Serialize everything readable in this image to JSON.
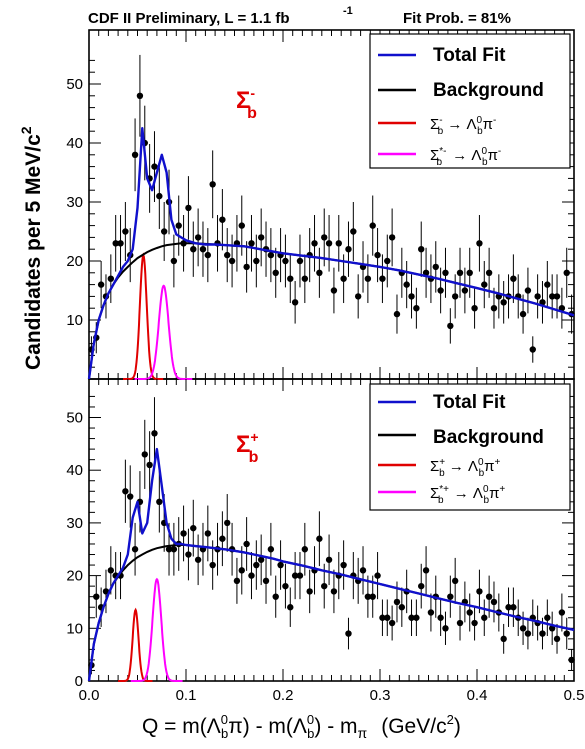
{
  "header": {
    "left": "CDF II Preliminary, L = 1.1 fb",
    "left_sup": "-1",
    "right": "Fit Prob. = 81%"
  },
  "axes": {
    "ylabel": "Candidates per 5 MeV/c",
    "ylabel_sup": "2",
    "xlabel_main": "Q = m(Λ",
    "xlabel_rest": "π) - m(Λ",
    "xlabel_tail": ") - m",
    "xlabel_pi": "π",
    "xlabel_units": "(GeV/c",
    "xlabel_units_sup": "2",
    "xlabel_units_end": ")"
  },
  "colors": {
    "total": "#1010cc",
    "background": "#000000",
    "sigma": "#e00000",
    "sigma_star": "#ff00ff"
  },
  "chart_data": [
    {
      "type": "scatter",
      "panel": "top",
      "signal_label": "Σ",
      "signal_sup": "-",
      "signal_sub": "b",
      "legend": {
        "placement": "top-right",
        "total": "Total Fit",
        "background": "Background",
        "sigma": "Σb- → Λb0π-",
        "sigma_star": "Σb*- → Λb0π-"
      },
      "xlim": [
        0.0,
        0.5
      ],
      "ylim": [
        0,
        57
      ],
      "yticks": [
        10,
        20,
        30,
        40,
        50
      ],
      "points_x": [
        0.0025,
        0.0075,
        0.0125,
        0.0175,
        0.0225,
        0.0275,
        0.0325,
        0.0375,
        0.0425,
        0.0475,
        0.0525,
        0.0575,
        0.0625,
        0.0675,
        0.0725,
        0.0775,
        0.0825,
        0.0875,
        0.0925,
        0.0975,
        0.1025,
        0.1075,
        0.1125,
        0.1175,
        0.1225,
        0.1275,
        0.1325,
        0.1375,
        0.1425,
        0.1475,
        0.1525,
        0.1575,
        0.1625,
        0.1675,
        0.1725,
        0.1775,
        0.1825,
        0.1875,
        0.1925,
        0.1975,
        0.2025,
        0.2075,
        0.2125,
        0.2175,
        0.2225,
        0.2275,
        0.2325,
        0.2375,
        0.2425,
        0.2475,
        0.2525,
        0.2575,
        0.2625,
        0.2675,
        0.2725,
        0.2775,
        0.2825,
        0.2875,
        0.2925,
        0.2975,
        0.3025,
        0.3075,
        0.3125,
        0.3175,
        0.3225,
        0.3275,
        0.3325,
        0.3375,
        0.3425,
        0.3475,
        0.3525,
        0.3575,
        0.3625,
        0.3675,
        0.3725,
        0.3775,
        0.3825,
        0.3875,
        0.3925,
        0.3975,
        0.4025,
        0.4075,
        0.4125,
        0.4175,
        0.4225,
        0.4275,
        0.4325,
        0.4375,
        0.4425,
        0.4475,
        0.4525,
        0.4575,
        0.4625,
        0.4675,
        0.4725,
        0.4775,
        0.4825,
        0.4875,
        0.4925,
        0.4975
      ],
      "points_y": [
        5,
        7,
        16,
        14,
        17,
        23,
        23,
        25,
        21,
        38,
        48,
        40,
        34,
        36,
        31,
        25,
        30,
        20,
        26,
        23,
        29,
        22,
        24,
        22,
        21,
        33,
        23,
        27,
        21,
        20,
        23,
        26,
        19,
        23,
        20,
        24,
        22,
        21,
        18,
        21,
        20,
        17,
        13,
        20,
        17,
        21,
        23,
        18,
        24,
        23,
        15,
        23,
        17,
        22,
        25,
        14,
        19,
        17,
        26,
        21,
        17,
        20,
        24,
        11,
        18,
        16,
        14,
        12,
        22,
        18,
        17,
        19,
        15,
        18,
        9,
        14,
        18,
        15,
        18,
        12,
        23,
        16,
        18,
        12,
        14,
        13,
        14,
        17,
        14,
        11,
        15,
        5,
        14,
        13,
        16,
        14,
        14,
        12,
        18,
        11
      ],
      "curve_x": [
        0.0,
        0.005,
        0.01,
        0.015,
        0.02,
        0.025,
        0.03,
        0.035,
        0.04,
        0.045,
        0.05,
        0.055,
        0.06,
        0.065,
        0.07,
        0.075,
        0.08,
        0.085,
        0.09,
        0.095,
        0.1,
        0.11,
        0.12,
        0.13,
        0.14,
        0.15,
        0.16,
        0.17,
        0.18,
        0.19,
        0.2,
        0.22,
        0.24,
        0.26,
        0.28,
        0.3,
        0.32,
        0.34,
        0.36,
        0.38,
        0.4,
        0.42,
        0.44,
        0.46,
        0.48,
        0.5
      ],
      "total_y": [
        0,
        6,
        10,
        12.5,
        14.5,
        16,
        17.5,
        19,
        20,
        22,
        29,
        42.5,
        34,
        32,
        35,
        38,
        35,
        27,
        24.5,
        24,
        23.5,
        23,
        22.8,
        22.8,
        22.7,
        22.6,
        22.5,
        22.2,
        21.9,
        21.6,
        21.3,
        20.9,
        20.5,
        20.0,
        19.5,
        19.0,
        18.4,
        17.7,
        17.0,
        16.2,
        15.4,
        14.6,
        13.7,
        12.8,
        11.8,
        10.8
      ],
      "bkg_y": [
        0,
        6,
        10,
        12.5,
        14.5,
        16,
        17.2,
        18.2,
        19.0,
        19.8,
        20.5,
        21.0,
        21.5,
        21.9,
        22.2,
        22.5,
        22.7,
        22.8,
        22.9,
        23.0,
        23.0,
        23.0,
        22.9,
        22.8,
        22.7,
        22.6,
        22.5,
        22.2,
        21.9,
        21.6,
        21.3,
        20.9,
        20.5,
        20.0,
        19.5,
        19.0,
        18.4,
        17.7,
        17.0,
        16.2,
        15.4,
        14.6,
        13.7,
        12.8,
        11.8,
        10.8
      ],
      "peak_sigma": {
        "mean": 0.056,
        "height": 21,
        "width": 0.0035
      },
      "peak_sigma_star": {
        "mean": 0.077,
        "height": 15.8,
        "width": 0.005
      }
    },
    {
      "type": "scatter",
      "panel": "bottom",
      "signal_label": "Σ",
      "signal_sup": "+",
      "signal_sub": "b",
      "legend": {
        "placement": "top-right",
        "total": "Total Fit",
        "background": "Background",
        "sigma": "Σb+ → Λb0π+",
        "sigma_star": "Σb*+ → Λb0π+"
      },
      "xlim": [
        0.0,
        0.5
      ],
      "ylim": [
        0,
        57
      ],
      "yticks": [
        0,
        10,
        20,
        30,
        40,
        50
      ],
      "xticks": [
        0.0,
        0.1,
        0.2,
        0.3,
        0.4,
        0.5
      ],
      "xtick_labels": [
        "0.0",
        "0.1",
        "0.2",
        "0.3",
        "0.4",
        "0.5"
      ],
      "points_x": [
        0.0025,
        0.0075,
        0.0125,
        0.0175,
        0.0225,
        0.0275,
        0.0325,
        0.0375,
        0.0425,
        0.0475,
        0.0525,
        0.0575,
        0.0625,
        0.0675,
        0.0725,
        0.0775,
        0.0825,
        0.0875,
        0.0925,
        0.0975,
        0.1025,
        0.1075,
        0.1125,
        0.1175,
        0.1225,
        0.1275,
        0.1325,
        0.1375,
        0.1425,
        0.1475,
        0.1525,
        0.1575,
        0.1625,
        0.1675,
        0.1725,
        0.1775,
        0.1825,
        0.1875,
        0.1925,
        0.1975,
        0.2025,
        0.2075,
        0.2125,
        0.2175,
        0.2225,
        0.2275,
        0.2325,
        0.2375,
        0.2425,
        0.2475,
        0.2525,
        0.2575,
        0.2625,
        0.2675,
        0.2725,
        0.2775,
        0.2825,
        0.2875,
        0.2925,
        0.2975,
        0.3025,
        0.3075,
        0.3125,
        0.3175,
        0.3225,
        0.3275,
        0.3325,
        0.3375,
        0.3425,
        0.3475,
        0.3525,
        0.3575,
        0.3625,
        0.3675,
        0.3725,
        0.3775,
        0.3825,
        0.3875,
        0.3925,
        0.3975,
        0.4025,
        0.4075,
        0.4125,
        0.4175,
        0.4225,
        0.4275,
        0.4325,
        0.4375,
        0.4425,
        0.4475,
        0.4525,
        0.4575,
        0.4625,
        0.4675,
        0.4725,
        0.4775,
        0.4825,
        0.4875,
        0.4925,
        0.4975
      ],
      "points_y": [
        3,
        16,
        14,
        17,
        21,
        20,
        20,
        36,
        35,
        25,
        34,
        43,
        41,
        47,
        34,
        30,
        25,
        25,
        26,
        28,
        24,
        29,
        23,
        25,
        28,
        22,
        25,
        27,
        30,
        25,
        19,
        21,
        26,
        20,
        22,
        23,
        19,
        25,
        16,
        22,
        18,
        14,
        20,
        20,
        25,
        17,
        21,
        27,
        18,
        23,
        17,
        20,
        22,
        9,
        20,
        19,
        21,
        16,
        16,
        20,
        12,
        12,
        11,
        15,
        14,
        17,
        12,
        12,
        18,
        21,
        13,
        16,
        12,
        10,
        16,
        19,
        11,
        15,
        13,
        11,
        17,
        12,
        16,
        15,
        13,
        8,
        14,
        14,
        12,
        10,
        9,
        12,
        11,
        9,
        12,
        10,
        8,
        13,
        9,
        4
      ],
      "curve_x": [
        0.0,
        0.005,
        0.01,
        0.015,
        0.02,
        0.025,
        0.03,
        0.035,
        0.04,
        0.045,
        0.05,
        0.055,
        0.06,
        0.065,
        0.07,
        0.075,
        0.08,
        0.085,
        0.09,
        0.095,
        0.1,
        0.11,
        0.12,
        0.13,
        0.14,
        0.15,
        0.16,
        0.17,
        0.18,
        0.19,
        0.2,
        0.22,
        0.24,
        0.26,
        0.28,
        0.3,
        0.32,
        0.34,
        0.36,
        0.38,
        0.4,
        0.42,
        0.44,
        0.46,
        0.48,
        0.5
      ],
      "total_y": [
        0,
        7,
        11,
        14,
        16.5,
        18.5,
        20,
        21.5,
        24,
        31,
        34,
        28,
        30,
        38,
        44,
        37,
        30,
        27,
        26,
        26,
        25.8,
        25.6,
        25.4,
        25.2,
        25.0,
        24.7,
        24.4,
        24.0,
        23.6,
        23.2,
        22.7,
        21.9,
        21.0,
        20.2,
        19.3,
        18.4,
        17.5,
        16.6,
        15.7,
        14.8,
        14.0,
        13.1,
        12.2,
        11.4,
        10.5,
        9.7
      ],
      "bkg_y": [
        0,
        7,
        11,
        14,
        16.5,
        18.5,
        19.8,
        21.0,
        22.0,
        22.8,
        23.5,
        24.0,
        24.5,
        24.9,
        25.2,
        25.4,
        25.6,
        25.7,
        25.8,
        25.8,
        25.8,
        25.6,
        25.4,
        25.2,
        25.0,
        24.7,
        24.4,
        24.0,
        23.6,
        23.2,
        22.7,
        21.9,
        21.0,
        20.2,
        19.3,
        18.4,
        17.5,
        16.6,
        15.7,
        14.8,
        14.0,
        13.1,
        12.2,
        11.4,
        10.5,
        9.7
      ],
      "peak_sigma": {
        "mean": 0.048,
        "height": 13.5,
        "width": 0.003
      },
      "peak_sigma_star": {
        "mean": 0.07,
        "height": 19.3,
        "width": 0.0045
      }
    }
  ]
}
